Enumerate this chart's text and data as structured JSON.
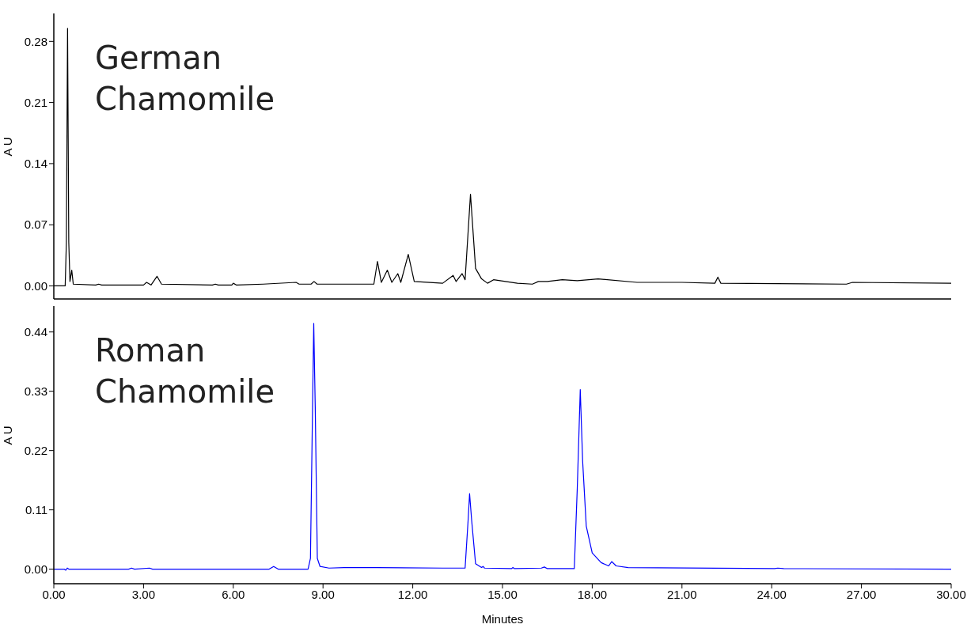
{
  "chart_data": [
    {
      "type": "line",
      "title": "German Chamomile",
      "ylabel": "A U",
      "xlim": [
        0,
        30
      ],
      "ylim": [
        -0.015,
        0.312
      ],
      "yticks": [
        {
          "value": 0,
          "label": "0.00"
        },
        {
          "value": 0.07,
          "label": "0.07"
        },
        {
          "value": 0.14,
          "label": "0.14"
        },
        {
          "value": 0.21,
          "label": "0.21"
        },
        {
          "value": 0.28,
          "label": "0.28"
        }
      ],
      "tick_labels": "y",
      "grid": false,
      "legend": false,
      "marker": "none",
      "line_style": "solid",
      "series": [
        {
          "color": "#000000",
          "x": [
            0,
            0.38,
            0.42,
            0.46,
            0.5,
            0.54,
            0.6,
            0.65,
            1.4,
            1.5,
            1.6,
            3.0,
            3.1,
            3.25,
            3.45,
            3.6,
            5.3,
            5.4,
            5.5,
            5.95,
            6.0,
            6.1,
            7.0,
            8.1,
            8.2,
            8.6,
            8.7,
            8.8,
            10.7,
            10.82,
            10.95,
            11.15,
            11.3,
            11.5,
            11.6,
            11.85,
            12.05,
            13.0,
            13.35,
            13.45,
            13.65,
            13.75,
            13.93,
            14.1,
            14.3,
            14.5,
            14.7,
            15.5,
            16.0,
            16.2,
            16.5,
            17.0,
            17.5,
            18.2,
            19.5,
            19.8,
            21.0,
            22.1,
            22.2,
            22.3,
            26.5,
            26.7,
            30
          ],
          "values": [
            0,
            0,
            0.05,
            0.295,
            0.05,
            0.005,
            0.018,
            0.002,
            0.001,
            0.002,
            0.001,
            0.001,
            0.004,
            0.001,
            0.011,
            0.002,
            0.001,
            0.002,
            0.001,
            0.001,
            0.003,
            0.001,
            0.002,
            0.004,
            0.002,
            0.002,
            0.005,
            0.002,
            0.002,
            0.028,
            0.004,
            0.018,
            0.004,
            0.014,
            0.004,
            0.036,
            0.005,
            0.003,
            0.012,
            0.005,
            0.014,
            0.007,
            0.105,
            0.02,
            0.008,
            0.003,
            0.007,
            0.003,
            0.002,
            0.005,
            0.005,
            0.007,
            0.006,
            0.008,
            0.004,
            0.004,
            0.004,
            0.003,
            0.01,
            0.003,
            0.002,
            0.004,
            0.003
          ]
        }
      ]
    },
    {
      "type": "line",
      "title": "Roman Chamomile",
      "ylabel": "A U",
      "xlabel": "Minutes",
      "xlim": [
        0,
        30
      ],
      "xticks": [
        {
          "value": 0,
          "label": "0.00"
        },
        {
          "value": 3,
          "label": "3.00"
        },
        {
          "value": 6,
          "label": "6.00"
        },
        {
          "value": 9,
          "label": "9.00"
        },
        {
          "value": 12,
          "label": "12.00"
        },
        {
          "value": 15,
          "label": "15.00"
        },
        {
          "value": 18,
          "label": "18.00"
        },
        {
          "value": 21,
          "label": "21.00"
        },
        {
          "value": 24,
          "label": "24.00"
        },
        {
          "value": 27,
          "label": "27.00"
        },
        {
          "value": 30,
          "label": "30.00"
        }
      ],
      "ylim": [
        -0.027,
        0.488
      ],
      "yticks": [
        {
          "value": 0,
          "label": "0.00"
        },
        {
          "value": 0.11,
          "label": "0.11"
        },
        {
          "value": 0.22,
          "label": "0.22"
        },
        {
          "value": 0.33,
          "label": "0.33"
        },
        {
          "value": 0.44,
          "label": "0.44"
        }
      ],
      "grid": false,
      "legend": false,
      "marker": "none",
      "line_style": "solid",
      "series": [
        {
          "color": "#0000ff",
          "x": [
            0,
            0.35,
            0.4,
            0.45,
            0.5,
            2.5,
            2.6,
            2.7,
            3.2,
            3.3,
            7.2,
            7.35,
            7.5,
            8.5,
            8.58,
            8.65,
            8.69,
            8.74,
            8.81,
            8.9,
            9.2,
            9.7,
            10.8,
            13.0,
            13.75,
            13.85,
            13.9,
            13.97,
            14.1,
            14.3,
            14.35,
            14.4,
            15.3,
            15.35,
            15.4,
            16.3,
            16.4,
            16.5,
            17.4,
            17.5,
            17.6,
            17.68,
            17.8,
            18.0,
            18.3,
            18.55,
            18.65,
            18.8,
            19.2,
            24.1,
            24.2,
            24.4,
            30
          ],
          "values": [
            0,
            0,
            -0.002,
            0.002,
            0,
            0,
            0.002,
            0,
            0.002,
            0,
            0,
            0.005,
            0,
            0,
            0.02,
            0.3,
            0.456,
            0.3,
            0.02,
            0.005,
            0.002,
            0.003,
            0.003,
            0.002,
            0.002,
            0.09,
            0.14,
            0.09,
            0.01,
            0.003,
            0.005,
            0.002,
            0.001,
            0.003,
            0.001,
            0.002,
            0.004,
            0.001,
            0.001,
            0.15,
            0.333,
            0.2,
            0.08,
            0.03,
            0.012,
            0.006,
            0.014,
            0.006,
            0.003,
            0.001,
            0.002,
            0.001,
            0
          ]
        }
      ]
    }
  ]
}
